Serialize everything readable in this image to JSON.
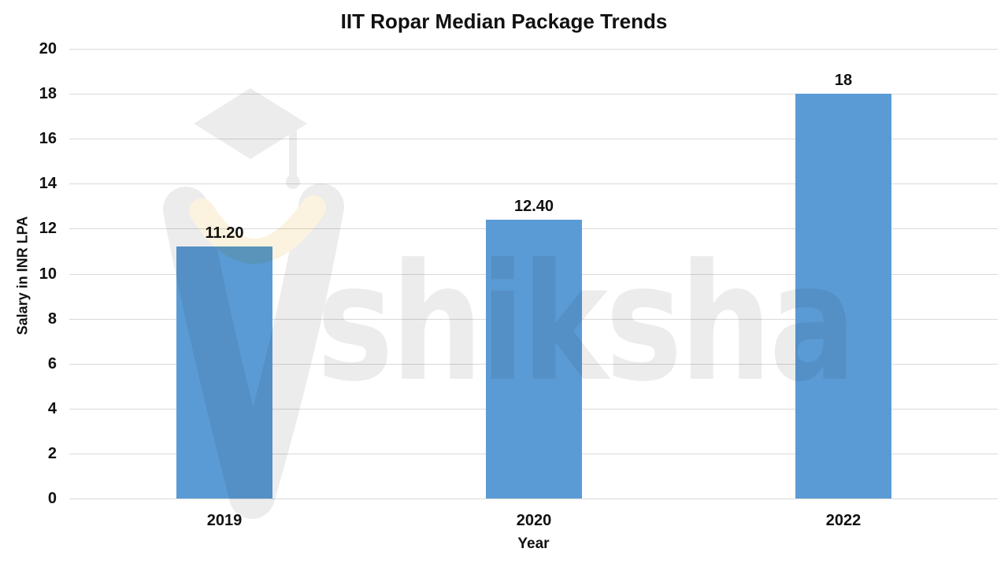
{
  "chart_data": {
    "type": "bar",
    "title": "IIT Ropar Median Package Trends",
    "xlabel": "Year",
    "ylabel": "Salary in INR LPA",
    "categories": [
      "2019",
      "2020",
      "2022"
    ],
    "values": [
      11.2,
      12.4,
      18
    ],
    "value_labels": [
      "11.20",
      "12.40",
      "18"
    ],
    "ylim": [
      0,
      20
    ],
    "ytick_step": 2,
    "yticks": [
      0,
      2,
      4,
      6,
      8,
      10,
      12,
      14,
      16,
      18,
      20
    ],
    "grid": "horizontal-only",
    "legend": "none",
    "bar_color": "#5b9bd5",
    "gridline_color": "#d9d9d9",
    "text_color": "#111111"
  },
  "watermark": {
    "text": "shiksha",
    "logo": "graduation-cap-mascot",
    "gray": "#ececec",
    "cream": "#fbf3df"
  }
}
